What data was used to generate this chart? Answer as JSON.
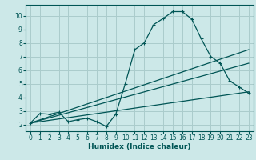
{
  "xlabel": "Humidex (Indice chaleur)",
  "bg_color": "#cce8e8",
  "grid_color": "#aacccc",
  "line_color": "#005555",
  "xlim": [
    -0.5,
    23.5
  ],
  "ylim": [
    1.5,
    10.8
  ],
  "yticks": [
    2,
    3,
    4,
    5,
    6,
    7,
    8,
    9,
    10
  ],
  "xticks": [
    0,
    1,
    2,
    3,
    4,
    5,
    6,
    7,
    8,
    9,
    10,
    11,
    12,
    13,
    14,
    15,
    16,
    17,
    18,
    19,
    20,
    21,
    22,
    23
  ],
  "curve1_x": [
    0,
    1,
    2,
    3,
    4,
    5,
    6,
    7,
    8,
    9,
    10,
    11,
    12,
    13,
    14,
    15,
    16,
    17,
    18,
    19,
    20,
    21,
    22,
    23
  ],
  "curve1_y": [
    2.1,
    2.8,
    2.75,
    2.9,
    2.2,
    2.35,
    2.45,
    2.2,
    1.85,
    2.75,
    5.0,
    7.5,
    8.0,
    9.35,
    9.8,
    10.3,
    10.3,
    9.75,
    8.3,
    7.0,
    6.5,
    5.2,
    4.75,
    4.3
  ],
  "line2_x": [
    0,
    23
  ],
  "line2_y": [
    2.1,
    7.5
  ],
  "line3_x": [
    0,
    23
  ],
  "line3_y": [
    2.1,
    6.5
  ],
  "line4_x": [
    0,
    23
  ],
  "line4_y": [
    2.1,
    4.4
  ]
}
